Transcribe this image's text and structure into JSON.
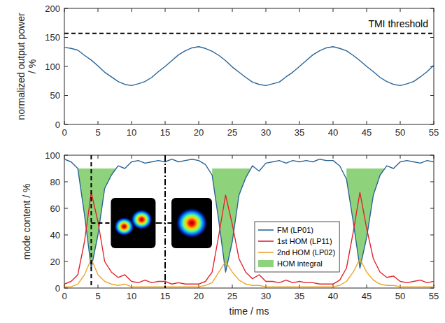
{
  "chart_data": [
    {
      "type": "line",
      "ylabel": "normalized output power / %",
      "xlim": [
        0,
        55
      ],
      "ylim": [
        0,
        200
      ],
      "xticks": [
        0,
        5,
        10,
        15,
        20,
        25,
        30,
        35,
        40,
        45,
        50,
        55
      ],
      "yticks": [
        0,
        50,
        100,
        150,
        200
      ],
      "x": [
        0,
        1,
        2,
        3,
        4,
        5,
        6,
        7,
        8,
        9,
        10,
        11,
        12,
        13,
        14,
        15,
        16,
        17,
        18,
        19,
        20,
        21,
        22,
        23,
        24,
        25,
        26,
        27,
        28,
        29,
        30,
        31,
        32,
        33,
        34,
        35,
        36,
        37,
        38,
        39,
        40,
        41,
        42,
        43,
        44,
        45,
        46,
        47,
        48,
        49,
        50,
        51,
        52,
        53,
        54,
        55
      ],
      "series": [
        {
          "color": "#2a6496",
          "values": [
            133,
            131,
            128,
            119,
            111,
            101,
            90,
            82,
            74,
            69,
            67,
            70,
            74,
            81,
            91,
            100,
            110,
            120,
            127,
            132,
            134,
            131,
            126,
            119,
            110,
            99,
            90,
            81,
            73,
            69,
            67,
            70,
            73,
            82,
            90,
            100,
            110,
            120,
            127,
            132,
            134,
            131,
            127,
            119,
            110,
            100,
            91,
            81,
            74,
            69,
            67,
            70,
            74,
            82,
            91,
            102
          ]
        }
      ],
      "hlines": [
        {
          "y": 157,
          "label": "TMI threshold",
          "line_style": "dashed"
        }
      ]
    },
    {
      "type": "line",
      "xlabel": "time / ms",
      "ylabel": "mode content / %",
      "xlim": [
        0,
        55
      ],
      "ylim": [
        0,
        100
      ],
      "xticks": [
        0,
        5,
        10,
        15,
        20,
        25,
        30,
        35,
        40,
        45,
        50,
        55
      ],
      "yticks": [
        0,
        20,
        40,
        60,
        80,
        100
      ],
      "legend": "lower right",
      "x": [
        0,
        1,
        2,
        3,
        4,
        5,
        6,
        7,
        8,
        9,
        10,
        11,
        12,
        13,
        14,
        15,
        16,
        17,
        18,
        19,
        20,
        21,
        22,
        23,
        24,
        25,
        26,
        27,
        28,
        29,
        30,
        31,
        32,
        33,
        34,
        35,
        36,
        37,
        38,
        39,
        40,
        41,
        42,
        43,
        44,
        45,
        46,
        47,
        48,
        49,
        50,
        51,
        52,
        53,
        54,
        55
      ],
      "series": [
        {
          "name": "FM (LP01)",
          "color": "#2a6496",
          "values": [
            97,
            95,
            90,
            55,
            15,
            40,
            75,
            85,
            92,
            90,
            95,
            96,
            94,
            95,
            96,
            95,
            97,
            95,
            96,
            97,
            96,
            93,
            85,
            50,
            12,
            35,
            70,
            83,
            92,
            88,
            94,
            95,
            96,
            94,
            96,
            95,
            96,
            95,
            97,
            96,
            96,
            92,
            82,
            50,
            15,
            38,
            70,
            85,
            92,
            90,
            95,
            96,
            95,
            94,
            96,
            95
          ]
        },
        {
          "name": "1st HOM (LP11)",
          "color": "#e3232c",
          "values": [
            3,
            5,
            10,
            35,
            72,
            50,
            20,
            12,
            8,
            10,
            5,
            4,
            6,
            4,
            5,
            5,
            3,
            4,
            3,
            3,
            3,
            5,
            12,
            40,
            70,
            48,
            22,
            12,
            7,
            10,
            5,
            5,
            4,
            6,
            4,
            5,
            4,
            4,
            3,
            3,
            3,
            6,
            15,
            42,
            72,
            45,
            22,
            12,
            8,
            9,
            5,
            4,
            5,
            6,
            4,
            5
          ]
        },
        {
          "name": "2nd HOM (LP02)",
          "color": "#eda62a",
          "values": [
            1,
            1,
            3,
            10,
            22,
            10,
            5,
            3,
            2,
            3,
            1,
            1,
            1,
            1,
            1,
            1,
            1,
            1,
            1,
            1,
            1,
            2,
            4,
            12,
            20,
            12,
            6,
            3,
            2,
            2,
            1,
            1,
            1,
            1,
            1,
            1,
            1,
            1,
            1,
            1,
            1,
            2,
            5,
            12,
            22,
            12,
            6,
            3,
            2,
            2,
            1,
            1,
            1,
            1,
            1,
            1
          ]
        },
        {
          "name": "HOM integral",
          "type": "area",
          "color": "#8fd27c",
          "values": [
            null,
            null,
            90,
            90,
            90,
            90,
            90,
            90,
            90,
            null,
            null,
            null,
            null,
            null,
            null,
            null,
            null,
            null,
            null,
            null,
            null,
            null,
            90,
            90,
            90,
            90,
            90,
            90,
            90,
            null,
            null,
            null,
            null,
            null,
            null,
            null,
            null,
            null,
            null,
            null,
            null,
            null,
            90,
            90,
            90,
            90,
            90,
            90,
            90,
            null,
            null,
            null,
            null,
            null,
            null,
            null
          ]
        }
      ],
      "vlines": [
        {
          "x": 4,
          "line_style": "dashed"
        },
        {
          "x": 15,
          "line_style": "dashdot"
        }
      ]
    }
  ]
}
